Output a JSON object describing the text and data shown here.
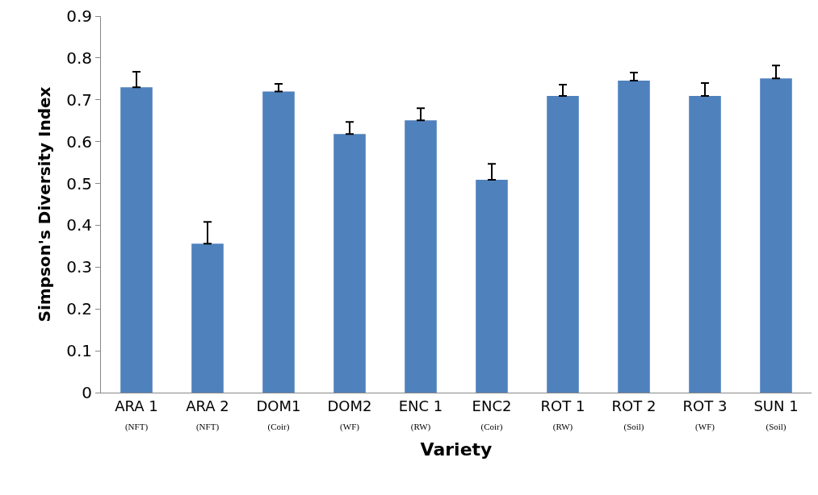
{
  "chart_data": {
    "type": "bar",
    "xlabel": "Variety",
    "ylabel": "Simpson's Diversity Index",
    "categories": [
      "ARA 1\n(NFT)",
      "ARA 2\n(NFT)",
      "DOM1\n(Coir)",
      "DOM2\n(WF)",
      "ENC 1\n(RW)",
      "ENC2\n(Coir)",
      "ROT 1\n(RW)",
      "ROT 2\n(Soil)",
      "ROT 3\n(WF)",
      "SUN 1\n(Soil)"
    ],
    "values": [
      0.73,
      0.356,
      0.72,
      0.618,
      0.651,
      0.509,
      0.709,
      0.746,
      0.709,
      0.751
    ],
    "errors": [
      [
        0.73,
        0.767
      ],
      [
        0.356,
        0.408
      ],
      [
        0.72,
        0.738
      ],
      [
        0.618,
        0.647
      ],
      [
        0.651,
        0.68
      ],
      [
        0.509,
        0.547
      ],
      [
        0.709,
        0.736
      ],
      [
        0.746,
        0.765
      ],
      [
        0.709,
        0.74
      ],
      [
        0.751,
        0.782
      ]
    ],
    "color": "#4f81bd",
    "ylim": [
      0,
      0.9
    ],
    "yticks": [
      0,
      0.1,
      0.2,
      0.3,
      0.4,
      0.5,
      0.6,
      0.7,
      0.8,
      0.9
    ],
    "grid": false,
    "legend": false
  }
}
